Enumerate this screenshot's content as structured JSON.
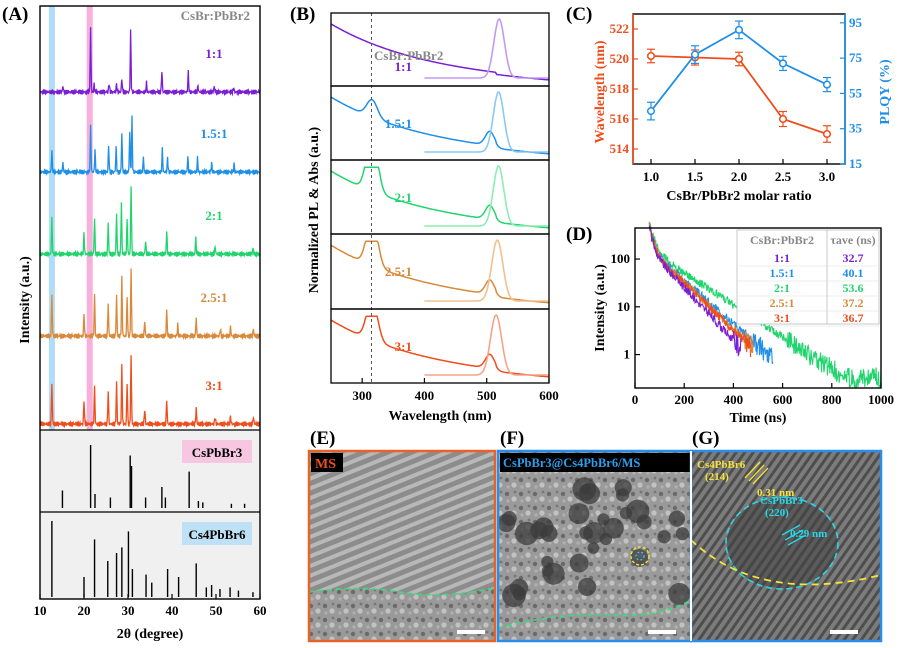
{
  "panels": {
    "A": "(A)",
    "B": "(B)",
    "C": "(C)",
    "D": "(D)",
    "E": "(E)",
    "F": "(F)",
    "G": "(G)"
  },
  "chart_data": [
    {
      "id": "A",
      "type": "line",
      "title": "CsBr:PbBr2",
      "xlabel": "2θ (degree)",
      "ylabel": "Intensity (a.u.)",
      "xlim": [
        10,
        60
      ],
      "xticks": [
        "10",
        "20",
        "30",
        "40",
        "50",
        "60"
      ],
      "highlight_bands": [
        {
          "center": 12.7,
          "color": "#a9d8f5"
        },
        {
          "center": 21.3,
          "color": "#f7a6d5"
        }
      ],
      "series": [
        {
          "name": "1:1",
          "color": "#7a1fd6",
          "peaks": [
            [
              15.2,
              0.08
            ],
            [
              21.5,
              0.85
            ],
            [
              22.3,
              0.1
            ],
            [
              25.7,
              0.12
            ],
            [
              27.4,
              0.1
            ],
            [
              28.6,
              0.18
            ],
            [
              30.6,
              0.8
            ],
            [
              34.2,
              0.12
            ],
            [
              37.7,
              0.28
            ],
            [
              43.7,
              0.26
            ],
            [
              45.9,
              0.08
            ],
            [
              49.6,
              0.08
            ],
            [
              54.0,
              0.06
            ]
          ]
        },
        {
          "name": "1.5:1",
          "color": "#1f8fe8",
          "peaks": [
            [
              12.7,
              0.28
            ],
            [
              15.2,
              0.12
            ],
            [
              21.5,
              0.62
            ],
            [
              22.5,
              0.3
            ],
            [
              25.6,
              0.35
            ],
            [
              27.3,
              0.32
            ],
            [
              28.6,
              0.52
            ],
            [
              30.4,
              0.55
            ],
            [
              30.9,
              0.72
            ],
            [
              33.5,
              0.2
            ],
            [
              37.8,
              0.3
            ],
            [
              39.0,
              0.2
            ],
            [
              43.6,
              0.2
            ],
            [
              45.8,
              0.18
            ],
            [
              49.0,
              0.12
            ],
            [
              54.1,
              0.1
            ]
          ]
        },
        {
          "name": "2:1",
          "color": "#22d46e",
          "peaks": [
            [
              12.7,
              0.48
            ],
            [
              20.0,
              0.28
            ],
            [
              22.4,
              0.48
            ],
            [
              25.5,
              0.42
            ],
            [
              27.4,
              0.55
            ],
            [
              28.5,
              0.7
            ],
            [
              29.8,
              0.45
            ],
            [
              30.7,
              0.92
            ],
            [
              34.0,
              0.18
            ],
            [
              38.8,
              0.3
            ],
            [
              45.4,
              0.22
            ],
            [
              49.8,
              0.1
            ],
            [
              58.4,
              0.08
            ]
          ]
        },
        {
          "name": "2.5:1",
          "color": "#d9893a",
          "peaks": [
            [
              12.7,
              0.55
            ],
            [
              20.0,
              0.3
            ],
            [
              22.4,
              0.55
            ],
            [
              25.5,
              0.45
            ],
            [
              27.4,
              0.55
            ],
            [
              28.6,
              0.78
            ],
            [
              29.8,
              0.52
            ],
            [
              30.7,
              0.9
            ],
            [
              33.8,
              0.2
            ],
            [
              38.8,
              0.35
            ],
            [
              41.3,
              0.15
            ],
            [
              45.5,
              0.25
            ],
            [
              51.0,
              0.1
            ],
            [
              53.3,
              0.12
            ],
            [
              58.5,
              0.1
            ]
          ]
        },
        {
          "name": "3:1",
          "color": "#ee4d1c",
          "peaks": [
            [
              12.7,
              0.55
            ],
            [
              20.0,
              0.32
            ],
            [
              22.4,
              0.5
            ],
            [
              25.5,
              0.45
            ],
            [
              27.4,
              0.55
            ],
            [
              28.6,
              0.78
            ],
            [
              29.8,
              0.55
            ],
            [
              30.7,
              0.9
            ],
            [
              33.8,
              0.2
            ],
            [
              38.8,
              0.32
            ],
            [
              45.5,
              0.22
            ],
            [
              49.8,
              0.1
            ],
            [
              53.3,
              0.1
            ],
            [
              58.5,
              0.1
            ]
          ]
        }
      ],
      "references": [
        {
          "name": "CsPbBr3",
          "color": "#f7c7e2",
          "peaks": [
            [
              15.1,
              0.25
            ],
            [
              21.5,
              0.9
            ],
            [
              22.5,
              0.2
            ],
            [
              26.0,
              0.15
            ],
            [
              30.5,
              0.75
            ],
            [
              30.8,
              0.6
            ],
            [
              34.0,
              0.15
            ],
            [
              37.7,
              0.3
            ],
            [
              38.5,
              0.15
            ],
            [
              43.9,
              0.52
            ],
            [
              46.0,
              0.1
            ],
            [
              47.0,
              0.08
            ],
            [
              53.5,
              0.06
            ],
            [
              56.5,
              0.06
            ]
          ]
        },
        {
          "name": "Cs4PbBr6",
          "color": "#bfe1f5",
          "peaks": [
            [
              12.7,
              0.95
            ],
            [
              20.0,
              0.25
            ],
            [
              22.4,
              0.72
            ],
            [
              25.4,
              0.45
            ],
            [
              27.4,
              0.55
            ],
            [
              28.6,
              0.62
            ],
            [
              30.1,
              0.82
            ],
            [
              31.0,
              0.35
            ],
            [
              34.1,
              0.28
            ],
            [
              35.4,
              0.18
            ],
            [
              39.0,
              0.35
            ],
            [
              41.5,
              0.25
            ],
            [
              45.5,
              0.42
            ],
            [
              47.8,
              0.12
            ],
            [
              49.0,
              0.15
            ],
            [
              50.9,
              0.1
            ],
            [
              53.2,
              0.12
            ],
            [
              55.1,
              0.08
            ],
            [
              58.4,
              0.06
            ]
          ]
        }
      ]
    },
    {
      "id": "B",
      "type": "line",
      "title": "CsBr:PbBr2",
      "xlabel": "Wavelength (nm)",
      "ylabel": "Normalized PL & Abs (a.u.)",
      "xlim": [
        250,
        600
      ],
      "xticks": [
        "300",
        "400",
        "500",
        "600"
      ],
      "marker_line": 315,
      "series": [
        {
          "name": "1:1",
          "color": "#7a1fd6",
          "light": "#c39af2",
          "abs_peak": 0.0,
          "pl_center": 520,
          "pl_fwhm": 20
        },
        {
          "name": "1.5:1",
          "color": "#1f8fe8",
          "light": "#8cc8f2",
          "abs_peak": 0.25,
          "pl_center": 519,
          "pl_fwhm": 20
        },
        {
          "name": "2:1",
          "color": "#22d46e",
          "light": "#8ceeb4",
          "abs_peak": 0.85,
          "pl_center": 519,
          "pl_fwhm": 20
        },
        {
          "name": "2.5:1",
          "color": "#d9893a",
          "light": "#f0c08f",
          "abs_peak": 0.7,
          "pl_center": 517,
          "pl_fwhm": 21
        },
        {
          "name": "3:1",
          "color": "#ee4d1c",
          "light": "#f5a489",
          "abs_peak": 0.6,
          "pl_center": 515,
          "pl_fwhm": 21
        }
      ]
    },
    {
      "id": "C",
      "type": "line",
      "xlabel": "CsBr/PbBr2 molar ratio",
      "ylabel_left": "Wavelength (nm)",
      "ylabel_right": "PLQY (%)",
      "x": [
        1.0,
        1.5,
        2.0,
        2.5,
        3.0
      ],
      "xticks": [
        "1.0",
        "1.5",
        "2.0",
        "2.5",
        "3.0"
      ],
      "ylim_left": [
        513,
        523
      ],
      "yticks_left": [
        "514",
        "516",
        "518",
        "520",
        "522"
      ],
      "ylim_right": [
        15,
        100
      ],
      "yticks_right": [
        "15",
        "35",
        "55",
        "75",
        "95"
      ],
      "series": [
        {
          "name": "Wavelength",
          "color": "#ee4d1c",
          "axis": "left",
          "values": [
            520.2,
            520.1,
            520.0,
            516.0,
            515.0
          ],
          "err": [
            0.45,
            0.5,
            0.45,
            0.5,
            0.55
          ]
        },
        {
          "name": "PLQY",
          "color": "#1f8fe8",
          "axis": "right",
          "values": [
            45,
            77,
            91,
            72,
            60
          ],
          "err": [
            5,
            5,
            5,
            4,
            4
          ]
        }
      ]
    },
    {
      "id": "D",
      "type": "line",
      "xlabel": "Time (ns)",
      "ylabel": "Intensity (a.u.)",
      "xlim": [
        0,
        1000
      ],
      "xticks": [
        "0",
        "200",
        "400",
        "600",
        "800",
        "1000"
      ],
      "yticks": [
        "1",
        "10",
        "100"
      ],
      "table_header": [
        "CsBr:PbBr2",
        "τave (ns)"
      ],
      "series": [
        {
          "name": "1:1",
          "color": "#7a1fd6",
          "tau": "32.7",
          "tail_end": 430
        },
        {
          "name": "1.5:1",
          "color": "#1f8fe8",
          "tau": "40.1",
          "tail_end": 560
        },
        {
          "name": "2:1",
          "color": "#22d46e",
          "tau": "53.6",
          "tail_end": 1000
        },
        {
          "name": "2.5:1",
          "color": "#d9893a",
          "tau": "37.2",
          "tail_end": 480
        },
        {
          "name": "3:1",
          "color": "#ee4d1c",
          "tau": "36.7",
          "tail_end": 470
        }
      ]
    }
  ],
  "ref_labels": {
    "CsPbBr3": "CsPbBr3",
    "Cs4PbBr6": "Cs4PbBr6"
  },
  "tem": {
    "E_label": "MS",
    "F_label": "CsPbBr3@Cs4PbBr6/MS",
    "G_plane1": "Cs4PbBr6",
    "G_plane1_hkl": "(214)",
    "G_d1": "0.31 nm",
    "G_plane2": "CsPbBr3",
    "G_plane2_hkl": "(220)",
    "G_d2": "0.29 nm"
  }
}
